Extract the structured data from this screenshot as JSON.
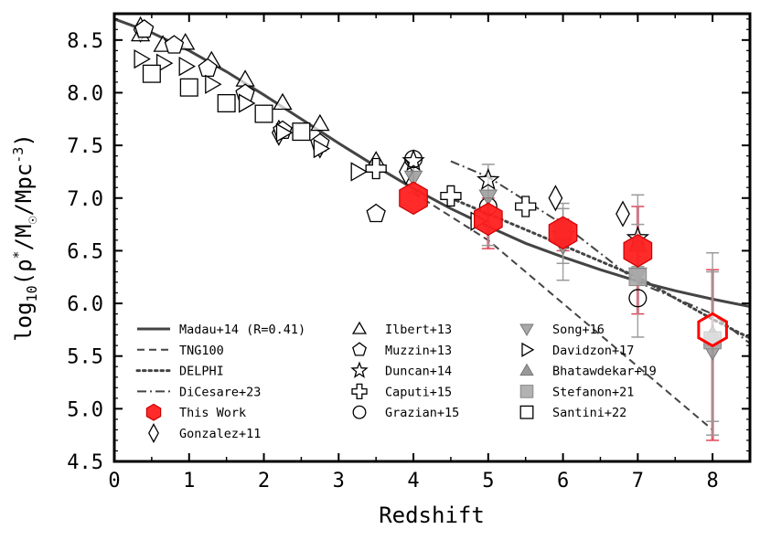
{
  "chart_data": {
    "type": "scatter",
    "xlabel": "Redshift",
    "ylabel": "log10(ρ*/M☉/Mpc^-3)",
    "xlim": [
      0,
      8.5
    ],
    "ylim": [
      4.5,
      8.75
    ],
    "x_ticks": [
      0,
      1,
      2,
      3,
      4,
      5,
      6,
      7,
      8
    ],
    "y_ticks": [
      4.5,
      5.0,
      5.5,
      6.0,
      6.5,
      7.0,
      7.5,
      8.0,
      8.5
    ],
    "x_tick_labels": [
      "0",
      "1",
      "2",
      "3",
      "4",
      "5",
      "6",
      "7",
      "8"
    ],
    "y_tick_labels": [
      "4.5",
      "5.0",
      "5.5",
      "6.0",
      "6.5",
      "7.0",
      "7.5",
      "8.0",
      "8.5"
    ],
    "ylabel_parts": {
      "log": "log",
      "sub": "10",
      "open": "(ρ",
      "star": "*",
      "unit": "/M",
      "sun": "☉",
      "mpc": "/Mpc",
      "exp": "-3",
      "close": ")"
    },
    "lines": [
      {
        "name": "Madau+14 (R=0.41)",
        "style": "solid",
        "color": "#444444",
        "x": [
          0,
          0.5,
          1,
          1.5,
          2,
          2.5,
          3,
          3.5,
          4,
          4.5,
          5,
          5.5,
          6,
          6.5,
          7,
          7.5,
          8,
          8.5
        ],
        "y": [
          8.7,
          8.57,
          8.4,
          8.2,
          7.98,
          7.75,
          7.52,
          7.3,
          7.09,
          6.9,
          6.73,
          6.57,
          6.44,
          6.32,
          6.21,
          6.12,
          6.04,
          5.97
        ]
      },
      {
        "name": "TNG100",
        "style": "dashed",
        "color": "#444444",
        "x": [
          4,
          5,
          6,
          7,
          8
        ],
        "y": [
          7.05,
          6.6,
          6.0,
          5.4,
          4.8
        ]
      },
      {
        "name": "DELPHI",
        "style": "dotted",
        "color": "#444444",
        "x": [
          4.5,
          5,
          6,
          7,
          8,
          8.5
        ],
        "y": [
          7.0,
          6.85,
          6.55,
          6.25,
          5.85,
          5.67
        ]
      },
      {
        "name": "DiCesare+23",
        "style": "dashdot",
        "color": "#444444",
        "x": [
          4.5,
          5,
          6,
          7,
          8,
          8.5
        ],
        "y": [
          7.35,
          7.2,
          6.75,
          6.2,
          5.9,
          5.62
        ]
      }
    ],
    "series": [
      {
        "name": "This Work",
        "marker": "hexagon",
        "color": "#ff2222",
        "stroke": "#ff0000",
        "points": [
          {
            "x": 4.0,
            "y": 7.0
          },
          {
            "x": 5.0,
            "y": 6.8,
            "err": [
              6.52,
              7.0
            ]
          },
          {
            "x": 6.0,
            "y": 6.67,
            "err": [
              6.5,
              6.8
            ]
          },
          {
            "x": 7.0,
            "y": 6.5,
            "err": [
              5.9,
              6.92
            ]
          },
          {
            "x": 8.0,
            "y": 5.75,
            "err": [
              4.7,
              6.32
            ],
            "open": true
          }
        ]
      },
      {
        "name": "Gonzalez+11",
        "marker": "diamond",
        "color": "#000000",
        "points": [
          {
            "x": 0.35,
            "y": 8.6
          },
          {
            "x": 2.2,
            "y": 7.62
          },
          {
            "x": 2.75,
            "y": 7.5
          },
          {
            "x": 3.9,
            "y": 7.25
          },
          {
            "x": 5.9,
            "y": 7.0
          },
          {
            "x": 6.8,
            "y": 6.85
          }
        ]
      },
      {
        "name": "Ilbert+13",
        "marker": "triangle-up",
        "color": "#000000",
        "points": [
          {
            "x": 0.35,
            "y": 8.55
          },
          {
            "x": 0.65,
            "y": 8.45
          },
          {
            "x": 0.95,
            "y": 8.47
          },
          {
            "x": 1.3,
            "y": 8.3
          },
          {
            "x": 1.75,
            "y": 8.12
          },
          {
            "x": 2.25,
            "y": 7.9
          },
          {
            "x": 2.75,
            "y": 7.7
          },
          {
            "x": 3.5,
            "y": 7.35
          }
        ]
      },
      {
        "name": "Muzzin+13",
        "marker": "pentagon",
        "color": "#000000",
        "points": [
          {
            "x": 0.4,
            "y": 8.6
          },
          {
            "x": 0.8,
            "y": 8.45
          },
          {
            "x": 1.25,
            "y": 8.23
          },
          {
            "x": 1.75,
            "y": 7.99
          },
          {
            "x": 2.25,
            "y": 7.64
          },
          {
            "x": 2.75,
            "y": 7.52
          },
          {
            "x": 3.5,
            "y": 6.85
          }
        ]
      },
      {
        "name": "Duncan+14",
        "marker": "star",
        "color": "#000000",
        "points": [
          {
            "x": 4.0,
            "y": 7.35
          },
          {
            "x": 5.0,
            "y": 7.17
          },
          {
            "x": 6.0,
            "y": 6.65
          },
          {
            "x": 7.0,
            "y": 6.62
          }
        ]
      },
      {
        "name": "Caputi+15",
        "marker": "plus",
        "color": "#000000",
        "points": [
          {
            "x": 3.5,
            "y": 7.28
          },
          {
            "x": 4.5,
            "y": 7.02
          },
          {
            "x": 5.5,
            "y": 6.92
          }
        ]
      },
      {
        "name": "Grazian+15",
        "marker": "circle",
        "color": "#000000",
        "points": [
          {
            "x": 4.0,
            "y": 7.37
          },
          {
            "x": 5.0,
            "y": 6.92
          },
          {
            "x": 6.0,
            "y": 6.65
          },
          {
            "x": 7.0,
            "y": 6.05
          }
        ]
      },
      {
        "name": "Song+16",
        "marker": "triangle-down",
        "color": "#999999",
        "points": [
          {
            "x": 4.0,
            "y": 7.2,
            "err": [
              7.05,
              7.3
            ]
          },
          {
            "x": 5.0,
            "y": 7.02,
            "err": [
              6.55,
              7.32
            ]
          },
          {
            "x": 6.0,
            "y": 6.55,
            "err": [
              6.22,
              6.9
            ]
          },
          {
            "x": 7.0,
            "y": 6.28,
            "err": [
              5.68,
              7.03
            ]
          },
          {
            "x": 8.0,
            "y": 5.55,
            "err": [
              4.88,
              6.48
            ]
          }
        ]
      },
      {
        "name": "Davidzon+17",
        "marker": "triangle-right",
        "color": "#000000",
        "points": [
          {
            "x": 0.35,
            "y": 8.32
          },
          {
            "x": 0.65,
            "y": 8.28
          },
          {
            "x": 0.95,
            "y": 8.25
          },
          {
            "x": 1.3,
            "y": 8.08
          },
          {
            "x": 1.75,
            "y": 7.9
          },
          {
            "x": 2.25,
            "y": 7.62
          },
          {
            "x": 2.75,
            "y": 7.47
          },
          {
            "x": 3.25,
            "y": 7.25
          },
          {
            "x": 4.85,
            "y": 6.78
          }
        ]
      },
      {
        "name": "Bhatawdekar+19",
        "marker": "triangle-up-filled",
        "color": "#999999",
        "points": [
          {
            "x": 6.0,
            "y": 6.68,
            "err": [
              6.38,
              6.95
            ]
          },
          {
            "x": 7.0,
            "y": 6.55,
            "err": [
              6.35,
              6.75
            ]
          },
          {
            "x": 8.0,
            "y": 5.7,
            "err": [
              4.75,
              6.3
            ]
          }
        ]
      },
      {
        "name": "Stefanon+21",
        "marker": "square-filled",
        "color": "#aaaaaa",
        "points": [
          {
            "x": 6.0,
            "y": 6.7
          },
          {
            "x": 7.0,
            "y": 6.25
          },
          {
            "x": 8.0,
            "y": 5.65
          }
        ]
      },
      {
        "name": "Santini+22",
        "marker": "square",
        "color": "#000000",
        "points": [
          {
            "x": 0.5,
            "y": 8.18
          },
          {
            "x": 1.0,
            "y": 8.05
          },
          {
            "x": 1.5,
            "y": 7.9
          },
          {
            "x": 2.0,
            "y": 7.8
          },
          {
            "x": 2.5,
            "y": 7.63
          }
        ]
      }
    ],
    "legend": [
      {
        "label": "Madau+14 (R=0.41)",
        "kind": "line",
        "style": "solid",
        "col": 0
      },
      {
        "label": "TNG100",
        "kind": "line",
        "style": "dashed",
        "col": 0
      },
      {
        "label": "DELPHI",
        "kind": "line",
        "style": "dotted",
        "col": 0
      },
      {
        "label": "DiCesare+23",
        "kind": "line",
        "style": "dashdot",
        "col": 0
      },
      {
        "label": "This Work",
        "kind": "marker",
        "marker": "hexagon",
        "col": 0
      },
      {
        "label": "Gonzalez+11",
        "kind": "marker",
        "marker": "diamond",
        "col": 0
      },
      {
        "label": "Ilbert+13",
        "kind": "marker",
        "marker": "triangle-up",
        "col": 1
      },
      {
        "label": "Muzzin+13",
        "kind": "marker",
        "marker": "pentagon",
        "col": 1
      },
      {
        "label": "Duncan+14",
        "kind": "marker",
        "marker": "star",
        "col": 1
      },
      {
        "label": "Caputi+15",
        "kind": "marker",
        "marker": "plus",
        "col": 1
      },
      {
        "label": "Grazian+15",
        "kind": "marker",
        "marker": "circle",
        "col": 1
      },
      {
        "label": "Song+16",
        "kind": "marker",
        "marker": "triangle-down",
        "col": 2
      },
      {
        "label": "Davidzon+17",
        "kind": "marker",
        "marker": "triangle-right",
        "col": 2
      },
      {
        "label": "Bhatawdekar+19",
        "kind": "marker",
        "marker": "triangle-up-filled",
        "col": 2
      },
      {
        "label": "Stefanon+21",
        "kind": "marker",
        "marker": "square-filled",
        "col": 2
      },
      {
        "label": "Santini+22",
        "kind": "marker",
        "marker": "square",
        "col": 2
      }
    ],
    "legend_placement": "bottom-left"
  }
}
